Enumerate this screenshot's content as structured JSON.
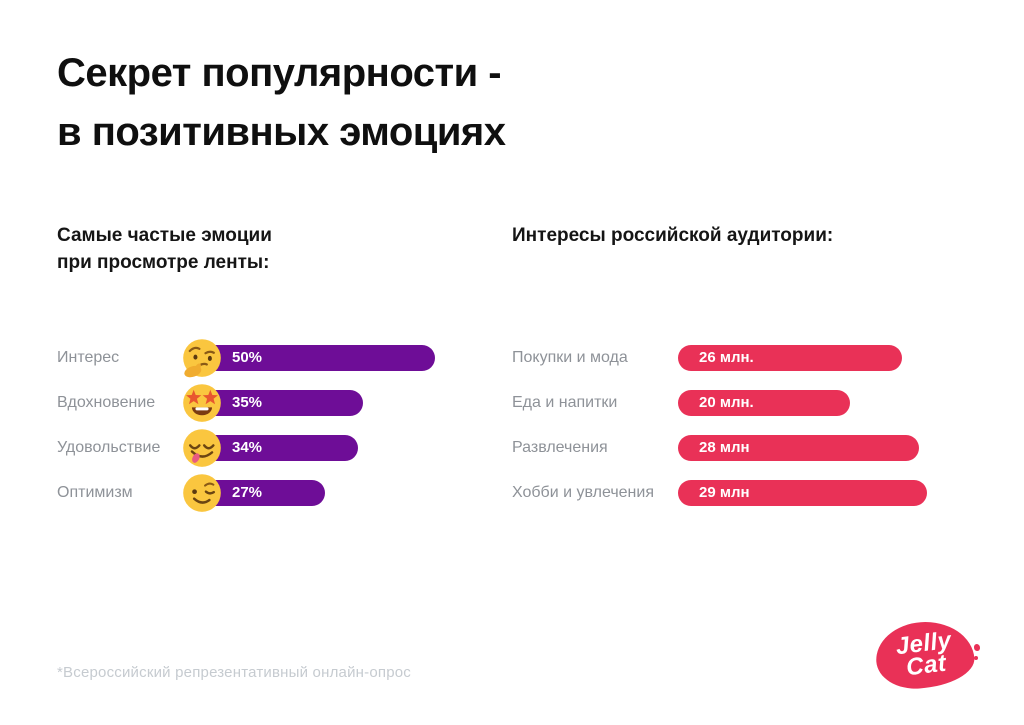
{
  "title": {
    "line1": "Секрет популярности -",
    "line2": "в позитивных эмоциях"
  },
  "charts": {
    "emotions": {
      "heading_line1": "Самые частые эмоции",
      "heading_line2": "при просмотре ленты:",
      "rows": [
        {
          "label": "Интерес",
          "value": 50,
          "display": "50%",
          "emoji": "thinking-face"
        },
        {
          "label": "Вдохновение",
          "value": 35,
          "display": "35%",
          "emoji": "star-struck-face"
        },
        {
          "label": "Удовольствие",
          "value": 34,
          "display": "34%",
          "emoji": "savoring-face"
        },
        {
          "label": "Оптимизм",
          "value": 27,
          "display": "27%",
          "emoji": "winking-face"
        }
      ]
    },
    "interests": {
      "heading": "Интересы российской аудитории:",
      "rows": [
        {
          "label": "Покупки и мода",
          "value": 26,
          "display": "26 млн."
        },
        {
          "label": "Еда и напитки",
          "value": 20,
          "display": "20 млн."
        },
        {
          "label": "Развлечения",
          "value": 28,
          "display": "28 млн"
        },
        {
          "label": "Хобби и увлечения",
          "value": 29,
          "display": "29 млн"
        }
      ]
    }
  },
  "chart_data": [
    {
      "type": "bar",
      "orientation": "horizontal",
      "title": "Самые частые эмоции при просмотре ленты:",
      "categories": [
        "Интерес",
        "Вдохновение",
        "Удовольствие",
        "Оптимизм"
      ],
      "values": [
        50,
        35,
        34,
        27
      ],
      "unit": "%",
      "value_labels": [
        "50%",
        "35%",
        "34%",
        "27%"
      ],
      "annotations": [
        "thinking-face emoji",
        "star-struck-face emoji",
        "savoring-face emoji",
        "winking-face emoji"
      ],
      "bar_color": "#6e0d97",
      "grid": false,
      "value_label_position": "inside-left"
    },
    {
      "type": "bar",
      "orientation": "horizontal",
      "title": "Интересы российской аудитории:",
      "categories": [
        "Покупки и мода",
        "Еда и напитки",
        "Развлечения",
        "Хобби и увлечения"
      ],
      "values": [
        26,
        20,
        28,
        29
      ],
      "unit": "млн",
      "value_labels": [
        "26 млн.",
        "20 млн.",
        "28 млн",
        "29 млн"
      ],
      "bar_color": "#e93157",
      "grid": false,
      "value_label_position": "inside-left"
    }
  ],
  "footer": {
    "note": "*Всероссийский репрезентативный онлайн-опрос"
  },
  "logo": {
    "line1": "Jelly",
    "line2": "Cat"
  },
  "colors": {
    "emotions_bar": "#6e0d97",
    "interests_bar": "#e93157",
    "label_gray": "#8e9298",
    "footnote_gray": "#c6cbd0",
    "emoji_yellow": "#fac63f",
    "logo_pink": "#e93157",
    "background": "#ffffff",
    "title_black": "#0f0f0f"
  }
}
